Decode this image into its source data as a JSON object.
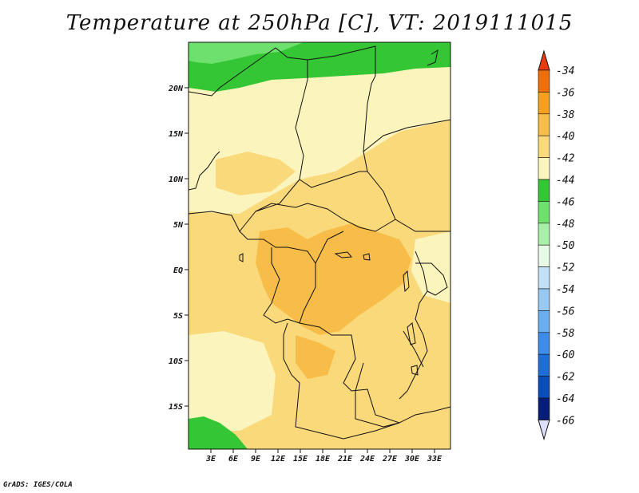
{
  "title": "Temperature at 250hPa [C], VT: 2019111015",
  "credit": "GrADS: IGES/COLA",
  "map": {
    "lat_ticks": [
      "20N",
      "15N",
      "10N",
      "5N",
      "EQ",
      "5S",
      "10S",
      "15S"
    ],
    "lon_ticks": [
      "3E",
      "6E",
      "9E",
      "12E",
      "15E",
      "18E",
      "21E",
      "24E",
      "27E",
      "30E",
      "33E"
    ]
  },
  "colorbar": {
    "labels": [
      "-34",
      "-36",
      "-38",
      "-40",
      "-42",
      "-44",
      "-46",
      "-48",
      "-50",
      "-52",
      "-54",
      "-56",
      "-58",
      "-60",
      "-62",
      "-64",
      "-66"
    ],
    "colors": [
      "#e83c10",
      "#f06e0a",
      "#f5a11e",
      "#f8bd48",
      "#fad97a",
      "#fcf4bd",
      "#34c634",
      "#6ee06e",
      "#a8f0a8",
      "#e6fae6",
      "#c2e0f6",
      "#96c8f2",
      "#6aaef0",
      "#3c8ce8",
      "#1e6ed6",
      "#0a4cbc",
      "#061e78",
      "#dedeff"
    ],
    "top_color": "#e83c10",
    "bottom_color": "#dedeff"
  },
  "legend_colors": {
    "light_yellow": "#fcf4bd",
    "yellow": "#fad97a",
    "orange_yellow": "#f8bd48",
    "green": "#34c634",
    "light_green": "#6ee06e"
  }
}
